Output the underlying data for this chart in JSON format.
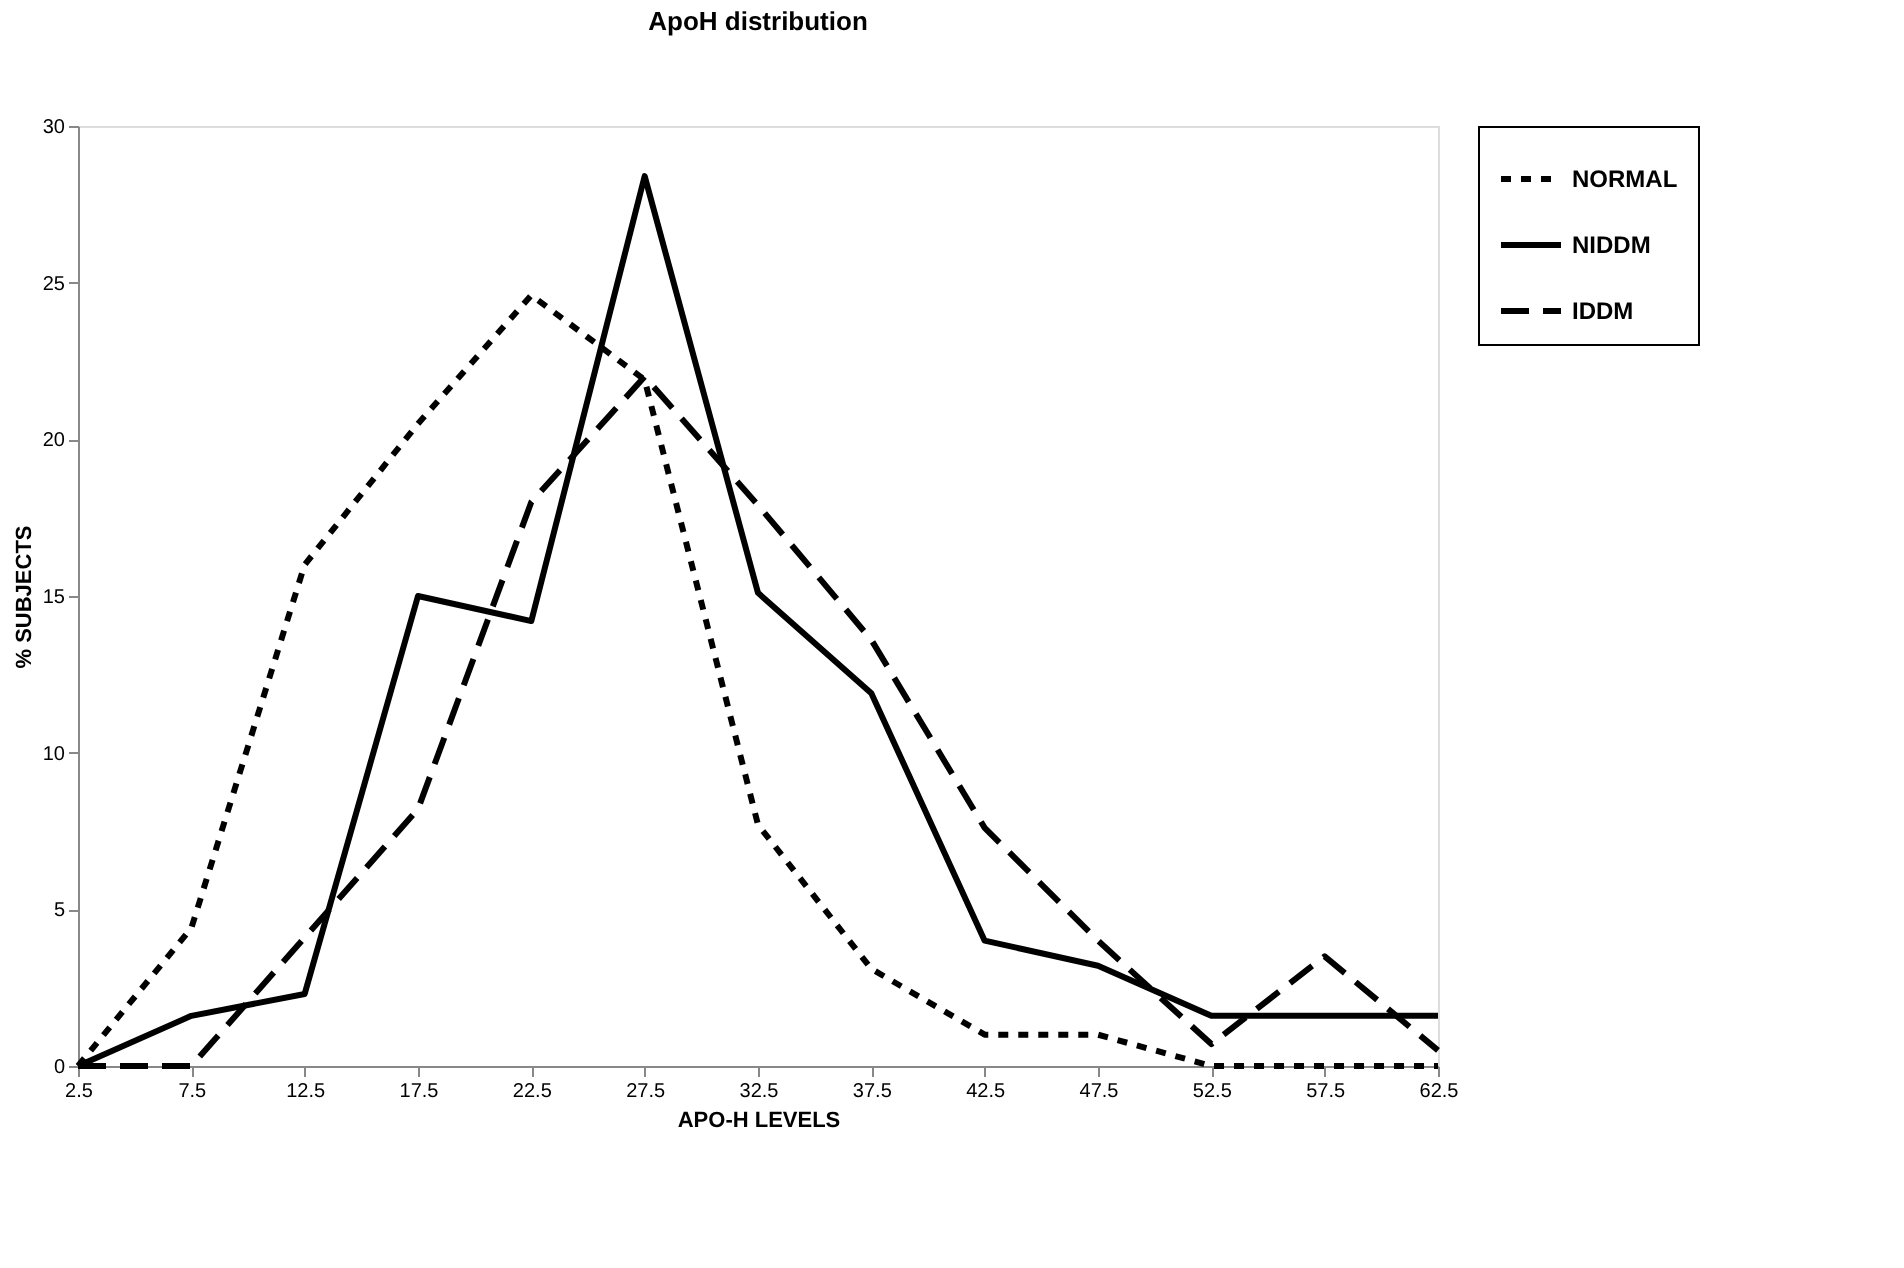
{
  "chart_data": {
    "type": "line",
    "title": "ApoH distribution",
    "xlabel": "APO-H LEVELS",
    "ylabel": "% SUBJECTS",
    "x": [
      2.5,
      7.5,
      12.5,
      17.5,
      22.5,
      27.5,
      32.5,
      37.5,
      42.5,
      47.5,
      52.5,
      57.5,
      62.5
    ],
    "xlim": [
      2.5,
      62.5
    ],
    "xticks": [
      2.5,
      7.5,
      12.5,
      17.5,
      22.5,
      27.5,
      32.5,
      37.5,
      42.5,
      47.5,
      52.5,
      57.5,
      62.5
    ],
    "ylim": [
      0,
      30
    ],
    "yticks": [
      0,
      5,
      10,
      15,
      20,
      25,
      30
    ],
    "grid": false,
    "legend": "right",
    "marker": "none",
    "series": [
      {
        "name": "NORMAL",
        "color": "#000000",
        "line_style": "dotted",
        "values": [
          0,
          4.4,
          16.0,
          20.5,
          24.6,
          21.9,
          7.7,
          3.1,
          1.0,
          1.0,
          0,
          0,
          0
        ]
      },
      {
        "name": "NIDDM",
        "color": "#000000",
        "line_style": "solid",
        "values": [
          0,
          1.6,
          2.3,
          15.0,
          14.2,
          28.4,
          15.1,
          11.9,
          4.0,
          3.2,
          1.6,
          1.6,
          1.6
        ]
      },
      {
        "name": "IDDM",
        "color": "#000000",
        "line_style": "dashed",
        "values": [
          0,
          0,
          4.1,
          8.2,
          18.0,
          22.0,
          17.9,
          13.6,
          7.6,
          4.0,
          0.7,
          3.5,
          0.5
        ]
      }
    ]
  }
}
